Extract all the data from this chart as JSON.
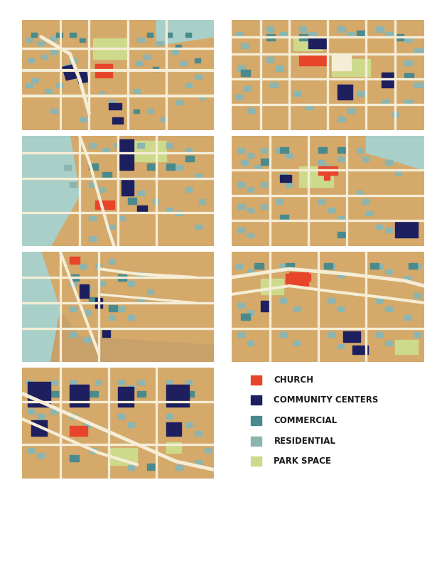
{
  "colors": {
    "background": "#FFFFFF",
    "map_bg": "#D4A96A",
    "church": "#E8442A",
    "community": "#1E1F5E",
    "commercial": "#4A8A8C",
    "residential": "#8DB5B0",
    "park": "#CDDA8C",
    "road": "#F5EDD6",
    "water": "#A8D0C8"
  },
  "legend": {
    "items": [
      "CHURCH",
      "COMMUNITY CENTERS",
      "COMMERCIAL",
      "RESIDENTIAL",
      "PARK SPACE"
    ],
    "colors": [
      "#E8442A",
      "#1E1F5E",
      "#4A8A8C",
      "#8DB5B0",
      "#CDDA8C"
    ],
    "font_size": 9,
    "bold": true
  },
  "panels": {
    "count": 7,
    "layout": [
      [
        0,
        1
      ],
      [
        2,
        3
      ],
      [
        4,
        5
      ],
      [
        6,
        "legend"
      ]
    ]
  }
}
